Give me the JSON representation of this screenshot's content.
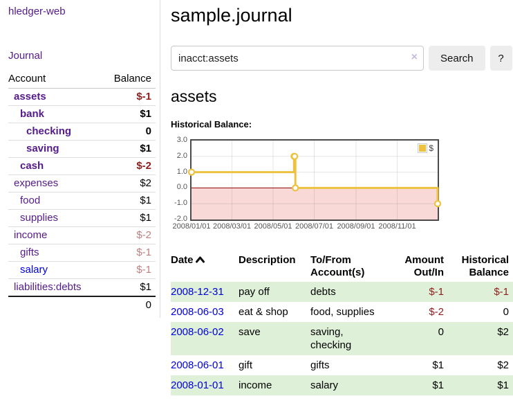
{
  "sidebar": {
    "app_title": "hledger-web",
    "journal_link": "Journal",
    "table": {
      "col_account": "Account",
      "col_balance": "Balance",
      "total": "0"
    },
    "accounts": [
      {
        "name": "assets",
        "indent": 0,
        "balance": "$-1",
        "bold": true,
        "balance_style": "negative",
        "link_color": "purple"
      },
      {
        "name": "bank",
        "indent": 1,
        "balance": "$1",
        "bold": true,
        "balance_style": "positive",
        "link_color": "purple"
      },
      {
        "name": "checking",
        "indent": 2,
        "balance": "0",
        "bold": true,
        "balance_style": "positive",
        "link_color": "purple"
      },
      {
        "name": "saving",
        "indent": 2,
        "balance": "$1",
        "bold": true,
        "balance_style": "positive",
        "link_color": "purple"
      },
      {
        "name": "cash",
        "indent": 1,
        "balance": "$-2",
        "bold": true,
        "balance_style": "negative",
        "link_color": "purple"
      },
      {
        "name": "expenses",
        "indent": 0,
        "balance": "$2",
        "bold": false,
        "balance_style": "positive",
        "link_color": "purple"
      },
      {
        "name": "food",
        "indent": 1,
        "balance": "$1",
        "bold": false,
        "balance_style": "positive",
        "link_color": "purple"
      },
      {
        "name": "supplies",
        "indent": 1,
        "balance": "$1",
        "bold": false,
        "balance_style": "positive",
        "link_color": "purple"
      },
      {
        "name": "income",
        "indent": 0,
        "balance": "$-2",
        "bold": false,
        "balance_style": "muted-negative",
        "link_color": "purple"
      },
      {
        "name": "gifts",
        "indent": 1,
        "balance": "$-1",
        "bold": false,
        "balance_style": "muted-negative",
        "link_color": "purple"
      },
      {
        "name": "salary",
        "indent": 1,
        "balance": "$-1",
        "bold": false,
        "balance_style": "muted-negative",
        "link_color": "blue"
      },
      {
        "name": "liabilities:debts",
        "indent": 0,
        "balance": "$1",
        "bold": false,
        "balance_style": "positive",
        "link_color": "purple"
      }
    ]
  },
  "header": {
    "title": "sample.journal"
  },
  "search": {
    "value": "inacct:assets",
    "clear_icon": "×",
    "button_label": "Search",
    "help_label": "?"
  },
  "account_page": {
    "heading": "assets"
  },
  "chart_data": {
    "type": "line",
    "step": true,
    "title": "Historical Balance:",
    "series": [
      {
        "name": "$",
        "color": "#edc240",
        "x": [
          "2008-01-01",
          "2008-06-01",
          "2008-06-02",
          "2008-06-03",
          "2008-12-31"
        ],
        "values": [
          1,
          2,
          2,
          0,
          -1
        ]
      }
    ],
    "x_range": [
      "2008-01-01",
      "2008-12-31"
    ],
    "x_ticks": [
      "2008/01/01",
      "2008/03/01",
      "2008/05/01",
      "2008/07/01",
      "2008/09/01",
      "2008/11/01"
    ],
    "y_ticks": [
      "3.0",
      "2.0",
      "1.0",
      "0.0",
      "-1.0",
      "-2.0"
    ],
    "ylim": [
      -2,
      3
    ],
    "grid": true,
    "legend_position": "top-right",
    "legend_label": "$",
    "zero_line_color": "#8b0000",
    "negative_region_color": "#f9d8d8"
  },
  "register": {
    "columns": [
      "Date",
      "Description",
      "To/From Account(s)",
      "Amount Out/In",
      "Historical Balance"
    ],
    "sort": "ascending",
    "rows": [
      {
        "date": "2008-12-31",
        "description": "pay off",
        "accounts": "debts",
        "amount": "$-1",
        "amount_negative": true,
        "balance": "$-1",
        "balance_negative": true,
        "highlight": true
      },
      {
        "date": "2008-06-03",
        "description": "eat & shop",
        "accounts": "food, supplies",
        "amount": "$-2",
        "amount_negative": true,
        "balance": "0",
        "balance_negative": false,
        "highlight": false
      },
      {
        "date": "2008-06-02",
        "description": "save",
        "accounts": "saving, checking",
        "amount": "0",
        "amount_negative": false,
        "balance": "$2",
        "balance_negative": false,
        "highlight": true
      },
      {
        "date": "2008-06-01",
        "description": "gift",
        "accounts": "gifts",
        "amount": "$1",
        "amount_negative": false,
        "balance": "$2",
        "balance_negative": false,
        "highlight": false
      },
      {
        "date": "2008-01-01",
        "description": "income",
        "accounts": "salary",
        "amount": "$1",
        "amount_negative": false,
        "balance": "$1",
        "balance_negative": false,
        "highlight": true
      }
    ]
  },
  "colors": {
    "link_purple": "#551a8b",
    "link_blue": "#0000e0",
    "negative_amount": "#8f1d1d",
    "muted_negative": "#bd7f7f",
    "row_highlight_green": "#dff0d8",
    "series_yellow": "#edc240"
  }
}
